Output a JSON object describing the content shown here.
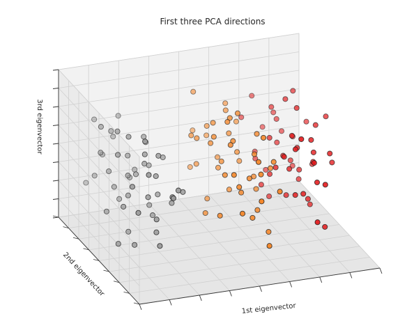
{
  "chart_data": {
    "type": "scatter",
    "projection": "3d",
    "title": "First three PCA directions",
    "xlabel": "1st eigenvector",
    "ylabel": "2nd eigenvector",
    "zlabel": "3rd eigenvector",
    "grid": true,
    "legend": "none",
    "tick_labels": "hidden",
    "colormap": "Set1",
    "series": [
      {
        "color": "#999999",
        "points": [
          [
            -3.4,
            -0.1,
            0.2
          ],
          [
            -3.3,
            -0.2,
            -0.1
          ],
          [
            -3.6,
            0.3,
            0.3
          ],
          [
            -3.2,
            0.4,
            0.0
          ],
          [
            -3.4,
            -0.6,
            0.1
          ],
          [
            -3.5,
            0.2,
            -0.2
          ],
          [
            -3.0,
            -0.1,
            0.3
          ],
          [
            -2.9,
            0.6,
            0.2
          ],
          [
            -3.1,
            -0.4,
            -0.3
          ],
          [
            -2.8,
            0.1,
            -0.1
          ],
          [
            -2.7,
            -0.5,
            0.0
          ],
          [
            -2.6,
            0.3,
            0.1
          ],
          [
            -3.3,
            0.8,
            -0.1
          ],
          [
            -3.0,
            -0.8,
            0.2
          ],
          [
            -2.9,
            0.9,
            0.0
          ],
          [
            -3.6,
            -0.3,
            -0.3
          ],
          [
            -2.5,
            -0.2,
            0.2
          ],
          [
            -2.7,
            0.5,
            -0.2
          ],
          [
            -3.2,
            0.1,
            0.3
          ],
          [
            -2.6,
            -0.7,
            -0.1
          ],
          [
            -2.4,
            0.2,
            0.0
          ],
          [
            -2.3,
            -0.4,
            0.1
          ],
          [
            -3.5,
            -0.9,
            0.0
          ],
          [
            -2.2,
            0.6,
            -0.1
          ],
          [
            -3.1,
            1.0,
            0.2
          ],
          [
            -2.8,
            -1.0,
            -0.2
          ],
          [
            -2.5,
            0.9,
            0.1
          ],
          [
            -2.1,
            -0.1,
            -0.2
          ],
          [
            -2.0,
            0.3,
            0.2
          ],
          [
            -1.9,
            -0.6,
            0.0
          ],
          [
            -1.8,
            0.0,
            -0.1
          ],
          [
            -2.4,
            -1.1,
            0.1
          ],
          [
            -1.7,
            0.4,
            0.0
          ],
          [
            -3.3,
            1.1,
            -0.2
          ],
          [
            -2.2,
            1.0,
            0.2
          ],
          [
            -1.6,
            -0.3,
            -0.1
          ],
          [
            -1.5,
            0.1,
            0.1
          ],
          [
            -2.9,
            0.0,
            -0.3
          ],
          [
            -2.0,
            -0.9,
            0.1
          ],
          [
            -1.8,
            0.8,
            -0.1
          ],
          [
            -3.4,
            0.5,
            0.1
          ],
          [
            -2.6,
            -0.3,
            0.3
          ],
          [
            -1.4,
            -0.5,
            0.0
          ],
          [
            -2.3,
            0.0,
            0.1
          ],
          [
            -1.9,
            0.2,
            -0.2
          ],
          [
            -2.7,
            0.2,
            0.0
          ],
          [
            -3.0,
            0.4,
            -0.1
          ],
          [
            -2.5,
            -0.6,
            -0.2
          ],
          [
            -1.6,
            0.6,
            0.1
          ],
          [
            -2.1,
            -0.3,
            0.2
          ]
        ]
      },
      {
        "color": "#f58220",
        "points": [
          [
            0.5,
            0.3,
            0.1
          ],
          [
            0.8,
            -0.2,
            0.2
          ],
          [
            1.0,
            0.5,
            -0.1
          ],
          [
            0.6,
            -0.6,
            0.0
          ],
          [
            1.3,
            0.1,
            0.3
          ],
          [
            0.9,
            0.8,
            0.1
          ],
          [
            1.5,
            -0.4,
            -0.2
          ],
          [
            0.3,
            0.0,
            0.2
          ],
          [
            1.2,
            -0.8,
            0.1
          ],
          [
            0.7,
            0.6,
            -0.3
          ],
          [
            1.6,
            0.4,
            0.0
          ],
          [
            0.4,
            -0.9,
            -0.1
          ],
          [
            1.8,
            -0.1,
            0.2
          ],
          [
            1.1,
            1.0,
            0.0
          ],
          [
            0.2,
            0.5,
            0.1
          ],
          [
            1.4,
            -0.7,
            0.3
          ],
          [
            0.6,
            1.1,
            -0.2
          ],
          [
            1.9,
            0.6,
            -0.1
          ],
          [
            0.9,
            -1.1,
            0.0
          ],
          [
            2.0,
            -0.5,
            0.1
          ],
          [
            0.1,
            -0.4,
            -0.2
          ],
          [
            1.7,
            0.9,
            0.2
          ],
          [
            1.3,
            -1.0,
            -0.3
          ],
          [
            0.5,
            0.9,
            0.3
          ],
          [
            2.1,
            0.2,
            -0.2
          ],
          [
            0.8,
            0.2,
            0.0
          ],
          [
            1.0,
            -0.3,
            -0.1
          ],
          [
            1.5,
            0.7,
            0.2
          ],
          [
            0.3,
            -0.7,
            0.1
          ],
          [
            1.2,
            0.3,
            -0.2
          ],
          [
            0.7,
            -0.1,
            0.3
          ],
          [
            1.8,
            -0.9,
            0.0
          ],
          [
            0.4,
            0.7,
            -0.1
          ],
          [
            1.6,
            -0.2,
            0.1
          ],
          [
            0.9,
            0.0,
            0.3
          ],
          [
            1.1,
            -0.6,
            -0.2
          ],
          [
            2.2,
            -0.2,
            0.0
          ],
          [
            0.2,
            0.2,
            -0.3
          ],
          [
            1.4,
            0.5,
            0.1
          ],
          [
            0.6,
            -0.3,
            0.2
          ],
          [
            1.9,
            0.1,
            -0.1
          ],
          [
            0.8,
            1.2,
            0.0
          ],
          [
            1.0,
            -0.9,
            0.2
          ],
          [
            1.7,
            -0.6,
            -0.3
          ],
          [
            0.5,
            -0.2,
            0.0
          ],
          [
            1.3,
            0.8,
            -0.1
          ],
          [
            0.1,
            0.6,
            0.1
          ],
          [
            2.0,
            0.8,
            0.1
          ],
          [
            1.2,
            -0.4,
            0.0
          ],
          [
            0.7,
            0.4,
            0.2
          ]
        ]
      },
      {
        "color": "#e41a1c",
        "points": [
          [
            2.6,
            0.2,
            0.1
          ],
          [
            2.9,
            -0.3,
            0.2
          ],
          [
            3.2,
            0.5,
            0.0
          ],
          [
            2.7,
            -0.6,
            -0.1
          ],
          [
            3.4,
            0.0,
            0.3
          ],
          [
            3.0,
            0.7,
            -0.2
          ],
          [
            3.6,
            -0.4,
            0.1
          ],
          [
            2.5,
            0.6,
            -0.1
          ],
          [
            3.3,
            -0.8,
            0.0
          ],
          [
            2.8,
            1.0,
            0.2
          ],
          [
            3.8,
            0.3,
            -0.2
          ],
          [
            2.4,
            -0.2,
            0.0
          ],
          [
            3.5,
            0.9,
            0.1
          ],
          [
            3.1,
            -1.0,
            -0.2
          ],
          [
            4.0,
            -0.1,
            0.2
          ],
          [
            2.3,
            0.9,
            0.1
          ],
          [
            3.7,
            -0.7,
            -0.3
          ],
          [
            3.9,
            0.6,
            0.0
          ],
          [
            2.6,
            -0.9,
            0.3
          ],
          [
            4.2,
            0.2,
            -0.1
          ],
          [
            3.0,
            0.1,
            0.0
          ],
          [
            2.8,
            0.4,
            -0.3
          ],
          [
            3.4,
            -0.5,
            0.2
          ],
          [
            3.6,
            0.4,
            -0.1
          ],
          [
            2.5,
            -0.4,
            0.1
          ],
          [
            3.2,
            1.0,
            0.0
          ],
          [
            4.1,
            -0.5,
            0.1
          ],
          [
            2.9,
            -0.1,
            -0.2
          ],
          [
            3.8,
            -0.2,
            0.0
          ],
          [
            3.3,
            0.3,
            0.3
          ],
          [
            2.7,
            0.8,
            -0.1
          ],
          [
            3.5,
            -0.9,
            0.0
          ],
          [
            4.3,
            0.5,
            0.1
          ],
          [
            3.1,
            0.6,
            0.2
          ],
          [
            2.4,
            0.3,
            -0.2
          ],
          [
            3.7,
            0.8,
            0.0
          ],
          [
            3.0,
            -0.6,
            -0.1
          ],
          [
            4.4,
            -0.3,
            0.0
          ],
          [
            2.6,
            -0.7,
            0.2
          ],
          [
            3.9,
            0.0,
            -0.3
          ],
          [
            3.4,
            0.7,
            0.1
          ],
          [
            2.8,
            -0.3,
            0.0
          ],
          [
            3.6,
            0.1,
            -0.1
          ],
          [
            4.0,
            0.7,
            -0.2
          ],
          [
            3.2,
            -0.2,
            0.1
          ],
          [
            4.6,
            0.1,
            0.2
          ],
          [
            2.5,
            0.1,
            -0.1
          ],
          [
            3.5,
            -0.3,
            -0.2
          ],
          [
            3.8,
            0.5,
            0.3
          ],
          [
            3.3,
            -0.7,
            0.1
          ]
        ]
      }
    ]
  }
}
